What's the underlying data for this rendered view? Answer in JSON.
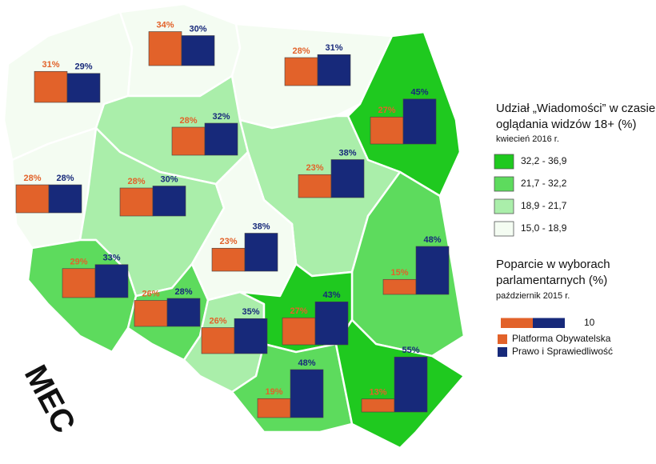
{
  "map": {
    "logo": "MEC",
    "regions": [
      {
        "values": [
          31,
          29
        ],
        "value_labels": [
          "31%",
          "29%"
        ],
        "class": 3
      },
      {
        "values": [
          34,
          30
        ],
        "value_labels": [
          "34%",
          "30%"
        ],
        "class": 3
      },
      {
        "values": [
          28,
          31
        ],
        "value_labels": [
          "28%",
          "31%"
        ],
        "class": 3
      },
      {
        "values": [
          27,
          45
        ],
        "value_labels": [
          "27%",
          "45%"
        ],
        "class": 0
      },
      {
        "values": [
          28,
          32
        ],
        "value_labels": [
          "28%",
          "32%"
        ],
        "class": 2
      },
      {
        "values": [
          23,
          38
        ],
        "value_labels": [
          "23%",
          "38%"
        ],
        "class": 2
      },
      {
        "values": [
          28,
          28
        ],
        "value_labels": [
          "28%",
          "28%"
        ],
        "class": 3
      },
      {
        "values": [
          28,
          30
        ],
        "value_labels": [
          "28%",
          "30%"
        ],
        "class": 2
      },
      {
        "values": [
          23,
          38
        ],
        "value_labels": [
          "23%",
          "38%"
        ],
        "class": 3
      },
      {
        "values": [
          15,
          48
        ],
        "value_labels": [
          "15%",
          "48%"
        ],
        "class": 1
      },
      {
        "values": [
          29,
          33
        ],
        "value_labels": [
          "29%",
          "33%"
        ],
        "class": 1
      },
      {
        "values": [
          26,
          28
        ],
        "value_labels": [
          "26%",
          "28%"
        ],
        "class": 1
      },
      {
        "values": [
          26,
          35
        ],
        "value_labels": [
          "26%",
          "35%"
        ],
        "class": 2
      },
      {
        "values": [
          27,
          43
        ],
        "value_labels": [
          "27%",
          "43%"
        ],
        "class": 0
      },
      {
        "values": [
          19,
          48
        ],
        "value_labels": [
          "19%",
          "48%"
        ],
        "class": 1
      },
      {
        "values": [
          13,
          55
        ],
        "value_labels": [
          "13%",
          "55%"
        ],
        "class": 0
      }
    ],
    "choropleth_legend": {
      "title_lines": [
        "Udział „Wiadomości” w czasie",
        "oglądania widzów 18+ (%)"
      ],
      "subtitle": "kwiecień 2016 r.",
      "classes": [
        {
          "label": "32,2 - 36,9",
          "color": "#1fc91f"
        },
        {
          "label": "21,7 - 32,2",
          "color": "#5ddb5d"
        },
        {
          "label": "18,9 - 21,7",
          "color": "#aaeeaa"
        },
        {
          "label": "15,0 - 18,9",
          "color": "#f4fcf2"
        }
      ]
    },
    "bar_legend": {
      "title_lines": [
        "Poparcie w wyborach",
        "parlamentarnych (%)"
      ],
      "subtitle": "październik 2015 r.",
      "scale_value": 10,
      "series": [
        {
          "name": "Platforma Obywatelska",
          "color": "#e2622a"
        },
        {
          "name": "Prawo i Sprawiedliwość",
          "color": "#17297a"
        }
      ]
    }
  }
}
